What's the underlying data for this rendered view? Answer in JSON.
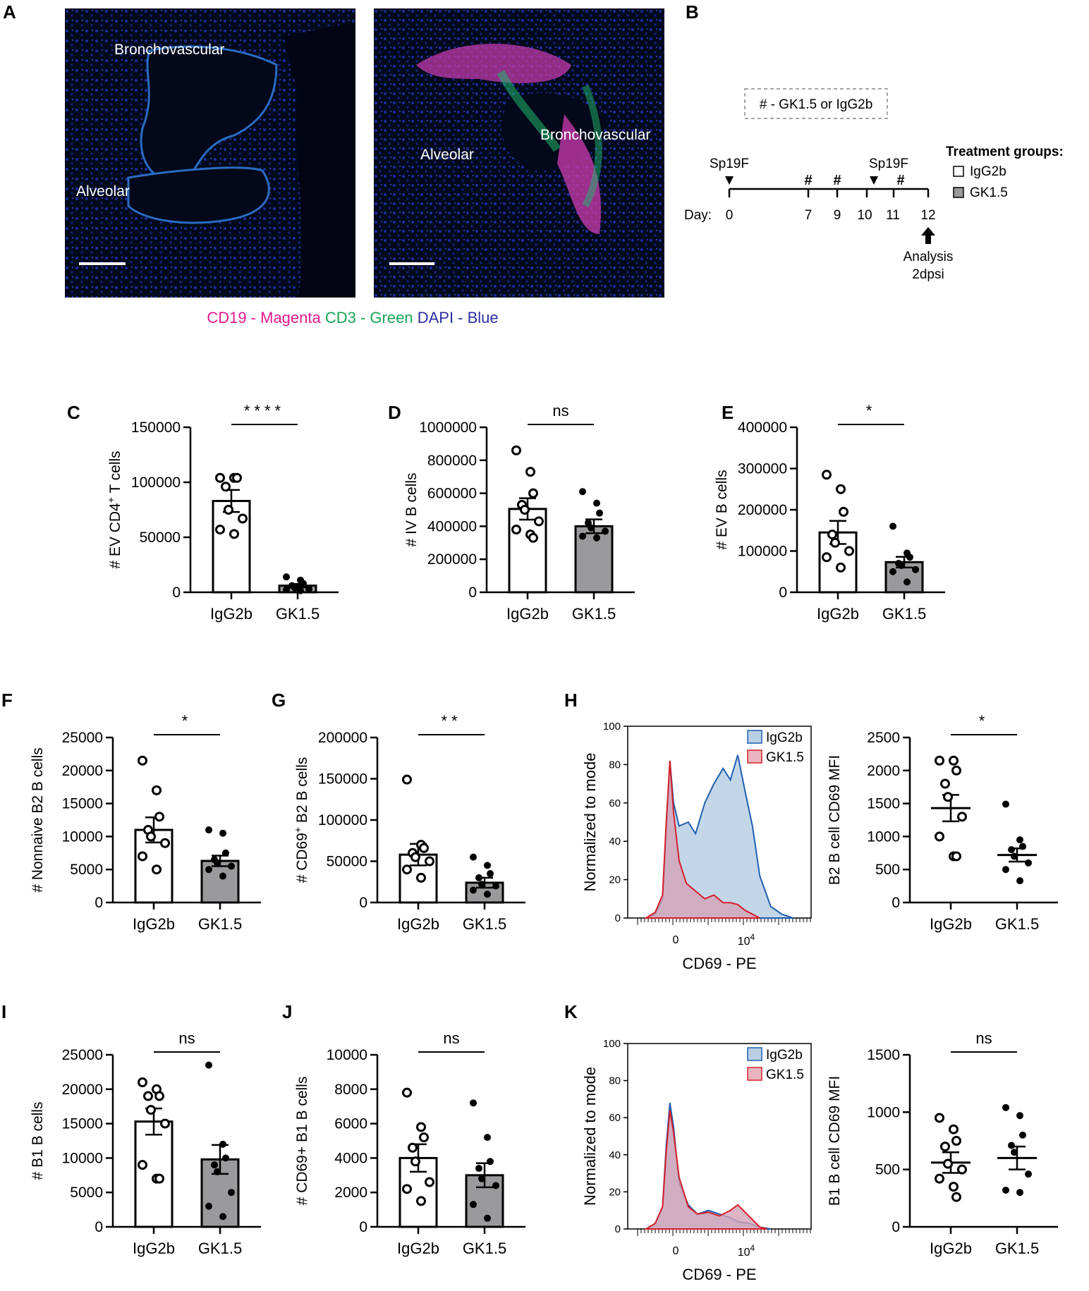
{
  "panelA": {
    "label": "A",
    "left": {
      "regions": [
        "Bronchovascular",
        "Alveolar"
      ]
    },
    "right": {
      "regions": [
        "Bronchovascular",
        "Alveolar"
      ]
    },
    "stain_legend": [
      {
        "text": "CD19 - Magenta",
        "color": "#e0198f"
      },
      {
        "text": "CD3 - Green",
        "color": "#1aa354"
      },
      {
        "text": "DAPI - Blue",
        "color": "#2b2fa0"
      }
    ]
  },
  "panelB": {
    "label": "B",
    "dose_note": "# - GK1.5 or IgG2b",
    "day_label": "Day:",
    "days": [
      "0",
      "7",
      "9",
      "10",
      "11",
      "12"
    ],
    "infections": [
      "Sp19F",
      "Sp19F"
    ],
    "dose_marker": "#",
    "analysis": [
      "Analysis",
      "2dpsi"
    ],
    "treatment_title": "Treatment groups:",
    "groups": [
      {
        "name": "IgG2b",
        "fill": "#ffffff"
      },
      {
        "name": "GK1.5",
        "fill": "#9a9a9c"
      }
    ]
  },
  "chart_data": [
    {
      "panel": "C",
      "type": "bar",
      "categories": [
        "IgG2b",
        "GK1.5"
      ],
      "values": [
        83000,
        6000
      ],
      "sem": [
        10000,
        1500
      ],
      "ylabel": "# EV CD4+ T cells",
      "ylim": [
        0,
        150000
      ],
      "yticks": [
        "0",
        "50000",
        "100000",
        "150000"
      ],
      "significance": "****",
      "points": [
        [
          104000,
          104000,
          104000,
          96000,
          75000,
          67000,
          57000,
          53000
        ],
        [
          14000,
          11000,
          8000,
          6000,
          4000,
          3000,
          2500,
          1500
        ]
      ]
    },
    {
      "panel": "D",
      "type": "bar",
      "categories": [
        "IgG2b",
        "GK1.5"
      ],
      "values": [
        505000,
        400000
      ],
      "sem": [
        65000,
        42000
      ],
      "ylabel": "# IV B cells",
      "ylim": [
        0,
        1000000
      ],
      "yticks": [
        "0",
        "200000",
        "400000",
        "600000",
        "800000",
        "1000000"
      ],
      "significance": "ns",
      "points": [
        [
          860000,
          730000,
          600000,
          530000,
          500000,
          430000,
          380000,
          350000,
          330000
        ],
        [
          610000,
          540000,
          480000,
          420000,
          390000,
          370000,
          340000,
          330000
        ]
      ]
    },
    {
      "panel": "E",
      "type": "bar",
      "categories": [
        "IgG2b",
        "GK1.5"
      ],
      "values": [
        145000,
        73000
      ],
      "sem": [
        28000,
        13000
      ],
      "ylabel": "# EV B cells",
      "ylim": [
        0,
        400000
      ],
      "yticks": [
        "0",
        "100000",
        "200000",
        "300000",
        "400000"
      ],
      "significance": "*",
      "points": [
        [
          285000,
          250000,
          195000,
          140000,
          120000,
          100000,
          85000,
          60000
        ],
        [
          160000,
          95000,
          85000,
          70000,
          65000,
          55000,
          50000,
          25000
        ]
      ]
    },
    {
      "panel": "F",
      "type": "bar",
      "categories": [
        "IgG2b",
        "GK1.5"
      ],
      "values": [
        11000,
        6300
      ],
      "sem": [
        1900,
        800
      ],
      "ylabel": "# Nonnaive B2 B cells",
      "ylim": [
        0,
        25000
      ],
      "yticks": [
        "0",
        "5000",
        "10000",
        "15000",
        "20000",
        "25000"
      ],
      "significance": "*",
      "points": [
        [
          21500,
          17000,
          13000,
          11000,
          10000,
          9000,
          7000,
          5000
        ],
        [
          11000,
          10500,
          7500,
          6500,
          6000,
          5500,
          5000,
          4000
        ]
      ]
    },
    {
      "panel": "G",
      "type": "bar",
      "categories": [
        "IgG2b",
        "GK1.5"
      ],
      "values": [
        58000,
        24000
      ],
      "sem": [
        13000,
        6000
      ],
      "ylabel": "# CD69+ B2 B cells",
      "ylim": [
        0,
        200000
      ],
      "yticks": [
        "0",
        "50000",
        "100000",
        "150000",
        "200000"
      ],
      "significance": "**",
      "points": [
        [
          149000,
          70000,
          66000,
          60000,
          55000,
          50000,
          40000,
          30000
        ],
        [
          55000,
          45000,
          35000,
          30000,
          22000,
          20000,
          15000,
          10000
        ]
      ]
    },
    {
      "panel": "H",
      "type": "line",
      "xlabel": "CD69 - PE",
      "ylabel": "Normalized to mode",
      "ylim": [
        0,
        100
      ],
      "yticks": [
        "0",
        "20",
        "40",
        "60",
        "80",
        "100"
      ],
      "xticks": [
        "0",
        "10^4"
      ],
      "series": [
        {
          "name": "IgG2b",
          "color": "#1f5fb0",
          "fill": "#b9cfe4"
        },
        {
          "name": "GK1.5",
          "color": "#d4202a",
          "fill": "#d4a3b6"
        }
      ]
    },
    {
      "panel": "H",
      "type": "scatter",
      "categories": [
        "IgG2b",
        "GK1.5"
      ],
      "values": [
        1430,
        720
      ],
      "sem": [
        200,
        100
      ],
      "ylabel": "B2 B cell CD69 MFI",
      "ylim": [
        0,
        2500
      ],
      "yticks": [
        "0",
        "500",
        "1000",
        "1500",
        "2000",
        "2500"
      ],
      "significance": "*",
      "points": [
        [
          2150,
          2150,
          2000,
          1800,
          1600,
          1300,
          1000,
          700,
          700
        ],
        [
          1490,
          950,
          850,
          800,
          700,
          600,
          500,
          330
        ]
      ]
    },
    {
      "panel": "I",
      "type": "bar",
      "categories": [
        "IgG2b",
        "GK1.5"
      ],
      "values": [
        15300,
        9800
      ],
      "sem": [
        1900,
        2100
      ],
      "ylabel": "# B1 B cells",
      "ylim": [
        0,
        25000
      ],
      "yticks": [
        "0",
        "5000",
        "10000",
        "15000",
        "20000",
        "25000"
      ],
      "significance": "ns",
      "points": [
        [
          21000,
          20000,
          19000,
          19000,
          17000,
          15000,
          9000,
          7000,
          7000
        ],
        [
          23500,
          12000,
          10000,
          9000,
          8000,
          5000,
          3000,
          1500
        ]
      ]
    },
    {
      "panel": "J",
      "type": "bar",
      "categories": [
        "IgG2b",
        "GK1.5"
      ],
      "values": [
        4000,
        3000
      ],
      "sem": [
        800,
        700
      ],
      "ylabel": "# CD69+ B1 B cells",
      "ylim": [
        0,
        10000
      ],
      "yticks": [
        "0",
        "2000",
        "4000",
        "6000",
        "8000",
        "10000"
      ],
      "significance": "ns",
      "points": [
        [
          7800,
          5800,
          5200,
          4600,
          3800,
          2600,
          2200,
          1500
        ],
        [
          7200,
          5200,
          3800,
          3400,
          2800,
          2400,
          1300,
          500
        ]
      ]
    },
    {
      "panel": "K",
      "type": "line",
      "xlabel": "CD69 - PE",
      "ylabel": "Normalized to mode",
      "ylim": [
        0,
        100
      ],
      "yticks": [
        "0",
        "20",
        "40",
        "60",
        "80",
        "100"
      ],
      "xticks": [
        "0",
        "10^4"
      ],
      "series": [
        {
          "name": "IgG2b",
          "color": "#1f5fb0",
          "fill": "#b9cfe4"
        },
        {
          "name": "GK1.5",
          "color": "#d4202a",
          "fill": "#d4a3b6"
        }
      ]
    },
    {
      "panel": "K",
      "type": "scatter",
      "categories": [
        "IgG2b",
        "GK1.5"
      ],
      "values": [
        560,
        600
      ],
      "sem": [
        90,
        100
      ],
      "ylabel": "B1 B cell CD69 MFI",
      "ylim": [
        0,
        1500
      ],
      "yticks": [
        "0",
        "500",
        "1000",
        "1500"
      ],
      "significance": "ns",
      "points": [
        [
          950,
          850,
          750,
          700,
          550,
          500,
          420,
          350,
          260
        ],
        [
          1040,
          970,
          800,
          710,
          650,
          460,
          320,
          300
        ]
      ]
    }
  ]
}
